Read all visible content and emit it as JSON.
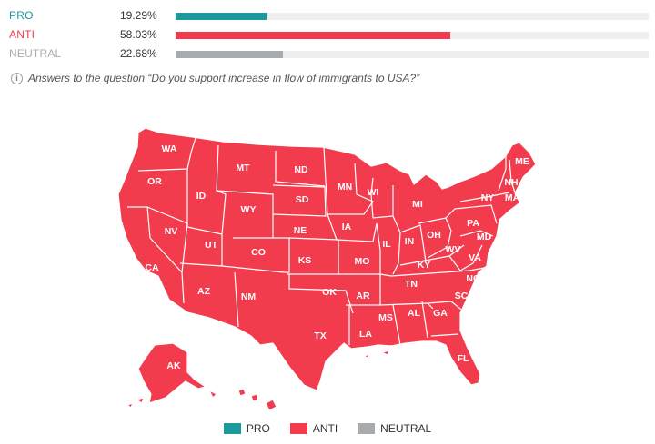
{
  "results": [
    {
      "label": "PRO",
      "value_text": "19.29%",
      "value": 19.29,
      "color": "#1a9a9f"
    },
    {
      "label": "ANTI",
      "value_text": "58.03%",
      "value": 58.03,
      "color": "#f23c4e"
    },
    {
      "label": "NEUTRAL",
      "value_text": "22.68%",
      "value": 22.68,
      "color": "#a8abae"
    }
  ],
  "question": "Answers to the question “Do you support increase in flow of immigrants to USA?”",
  "map": {
    "fill_color": "#f23c4e",
    "states": [
      "WA",
      "OR",
      "CA",
      "NV",
      "ID",
      "MT",
      "WY",
      "UT",
      "AZ",
      "CO",
      "NM",
      "ND",
      "SD",
      "NE",
      "KS",
      "OK",
      "TX",
      "MN",
      "IA",
      "MO",
      "AR",
      "LA",
      "WI",
      "IL",
      "MI",
      "IN",
      "OH",
      "KY",
      "TN",
      "MS",
      "AL",
      "GA",
      "FL",
      "SC",
      "NC",
      "VA",
      "WV",
      "PA",
      "MD",
      "NY",
      "ME",
      "NH",
      "MA",
      "AK"
    ]
  },
  "legend": [
    {
      "label": "PRO",
      "color": "#1a9a9f"
    },
    {
      "label": "ANTI",
      "color": "#f23c4e"
    },
    {
      "label": "NEUTRAL",
      "color": "#a8abae"
    }
  ]
}
